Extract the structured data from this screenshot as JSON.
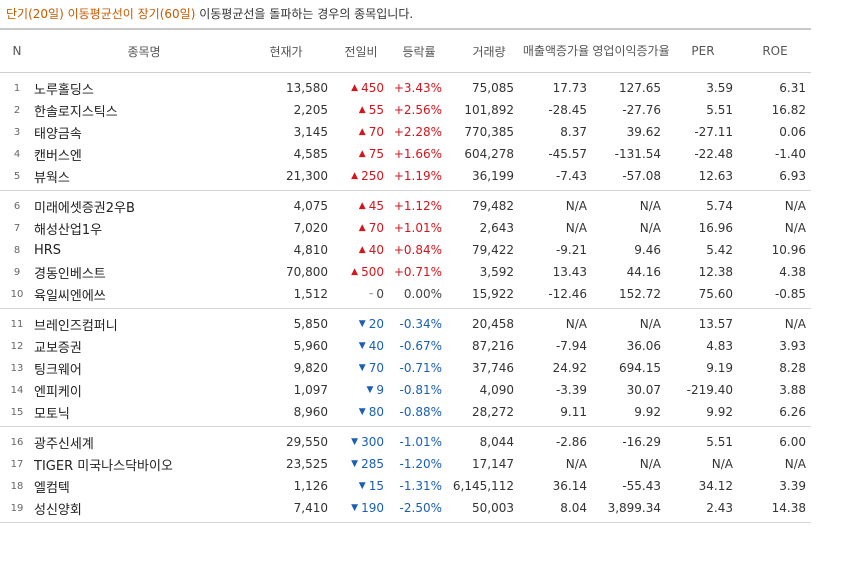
{
  "caption": {
    "highlight": "단기(20일) 이동평균선이 장기(60일)",
    "rest": "이동평균선을 돌파하는 경우의 종목입니다."
  },
  "headers": {
    "n": "N",
    "name": "종목명",
    "price": "현재가",
    "change": "전일비",
    "rate": "등락률",
    "volume": "거래량",
    "sales_growth": "매출액증가율",
    "op_growth": "영업이익증가율",
    "per": "PER",
    "roe": "ROE"
  },
  "colors": {
    "up": "#d3161d",
    "down": "#1a5fb4",
    "caption": "#c65a00"
  },
  "groups": [
    [
      {
        "n": "1",
        "name": "노루홀딩스",
        "price": "13,580",
        "dir": "up",
        "change": "450",
        "rate": "+3.43%",
        "volume": "75,085",
        "sales": "17.73",
        "op": "127.65",
        "per": "3.59",
        "roe": "6.31"
      },
      {
        "n": "2",
        "name": "한솔로지스틱스",
        "price": "2,205",
        "dir": "up",
        "change": "55",
        "rate": "+2.56%",
        "volume": "101,892",
        "sales": "-28.45",
        "op": "-27.76",
        "per": "5.51",
        "roe": "16.82"
      },
      {
        "n": "3",
        "name": "태양금속",
        "price": "3,145",
        "dir": "up",
        "change": "70",
        "rate": "+2.28%",
        "volume": "770,385",
        "sales": "8.37",
        "op": "39.62",
        "per": "-27.11",
        "roe": "0.06"
      },
      {
        "n": "4",
        "name": "캔버스엔",
        "price": "4,585",
        "dir": "up",
        "change": "75",
        "rate": "+1.66%",
        "volume": "604,278",
        "sales": "-45.57",
        "op": "-131.54",
        "per": "-22.48",
        "roe": "-1.40"
      },
      {
        "n": "5",
        "name": "뷰웍스",
        "price": "21,300",
        "dir": "up",
        "change": "250",
        "rate": "+1.19%",
        "volume": "36,199",
        "sales": "-7.43",
        "op": "-57.08",
        "per": "12.63",
        "roe": "6.93"
      }
    ],
    [
      {
        "n": "6",
        "name": "미래에셋증권2우B",
        "price": "4,075",
        "dir": "up",
        "change": "45",
        "rate": "+1.12%",
        "volume": "79,482",
        "sales": "N/A",
        "op": "N/A",
        "per": "5.74",
        "roe": "N/A"
      },
      {
        "n": "7",
        "name": "해성산업1우",
        "price": "7,020",
        "dir": "up",
        "change": "70",
        "rate": "+1.01%",
        "volume": "2,643",
        "sales": "N/A",
        "op": "N/A",
        "per": "16.96",
        "roe": "N/A"
      },
      {
        "n": "8",
        "name": "HRS",
        "price": "4,810",
        "dir": "up",
        "change": "40",
        "rate": "+0.84%",
        "volume": "79,422",
        "sales": "-9.21",
        "op": "9.46",
        "per": "5.42",
        "roe": "10.96"
      },
      {
        "n": "9",
        "name": "경동인베스트",
        "price": "70,800",
        "dir": "up",
        "change": "500",
        "rate": "+0.71%",
        "volume": "3,592",
        "sales": "13.43",
        "op": "44.16",
        "per": "12.38",
        "roe": "4.38"
      },
      {
        "n": "10",
        "name": "육일씨엔에쓰",
        "price": "1,512",
        "dir": "flat",
        "change": "0",
        "rate": "0.00%",
        "volume": "15,922",
        "sales": "-12.46",
        "op": "152.72",
        "per": "75.60",
        "roe": "-0.85"
      }
    ],
    [
      {
        "n": "11",
        "name": "브레인즈컴퍼니",
        "price": "5,850",
        "dir": "down",
        "change": "20",
        "rate": "-0.34%",
        "volume": "20,458",
        "sales": "N/A",
        "op": "N/A",
        "per": "13.57",
        "roe": "N/A"
      },
      {
        "n": "12",
        "name": "교보증권",
        "price": "5,960",
        "dir": "down",
        "change": "40",
        "rate": "-0.67%",
        "volume": "87,216",
        "sales": "-7.94",
        "op": "36.06",
        "per": "4.83",
        "roe": "3.93"
      },
      {
        "n": "13",
        "name": "팅크웨어",
        "price": "9,820",
        "dir": "down",
        "change": "70",
        "rate": "-0.71%",
        "volume": "37,746",
        "sales": "24.92",
        "op": "694.15",
        "per": "9.19",
        "roe": "8.28"
      },
      {
        "n": "14",
        "name": "엔피케이",
        "price": "1,097",
        "dir": "down",
        "change": "9",
        "rate": "-0.81%",
        "volume": "4,090",
        "sales": "-3.39",
        "op": "30.07",
        "per": "-219.40",
        "roe": "3.88"
      },
      {
        "n": "15",
        "name": "모토닉",
        "price": "8,960",
        "dir": "down",
        "change": "80",
        "rate": "-0.88%",
        "volume": "28,272",
        "sales": "9.11",
        "op": "9.92",
        "per": "9.92",
        "roe": "6.26"
      }
    ],
    [
      {
        "n": "16",
        "name": "광주신세계",
        "price": "29,550",
        "dir": "down",
        "change": "300",
        "rate": "-1.01%",
        "volume": "8,044",
        "sales": "-2.86",
        "op": "-16.29",
        "per": "5.51",
        "roe": "6.00"
      },
      {
        "n": "17",
        "name": "TIGER 미국나스닥바이오",
        "price": "23,525",
        "dir": "down",
        "change": "285",
        "rate": "-1.20%",
        "volume": "17,147",
        "sales": "N/A",
        "op": "N/A",
        "per": "N/A",
        "roe": "N/A"
      },
      {
        "n": "18",
        "name": "엘컴텍",
        "price": "1,126",
        "dir": "down",
        "change": "15",
        "rate": "-1.31%",
        "volume": "6,145,112",
        "sales": "36.14",
        "op": "-55.43",
        "per": "34.12",
        "roe": "3.39"
      },
      {
        "n": "19",
        "name": "성신양회",
        "price": "7,410",
        "dir": "down",
        "change": "190",
        "rate": "-2.50%",
        "volume": "50,003",
        "sales": "8.04",
        "op": "3,899.34",
        "per": "2.43",
        "roe": "14.38"
      }
    ]
  ]
}
